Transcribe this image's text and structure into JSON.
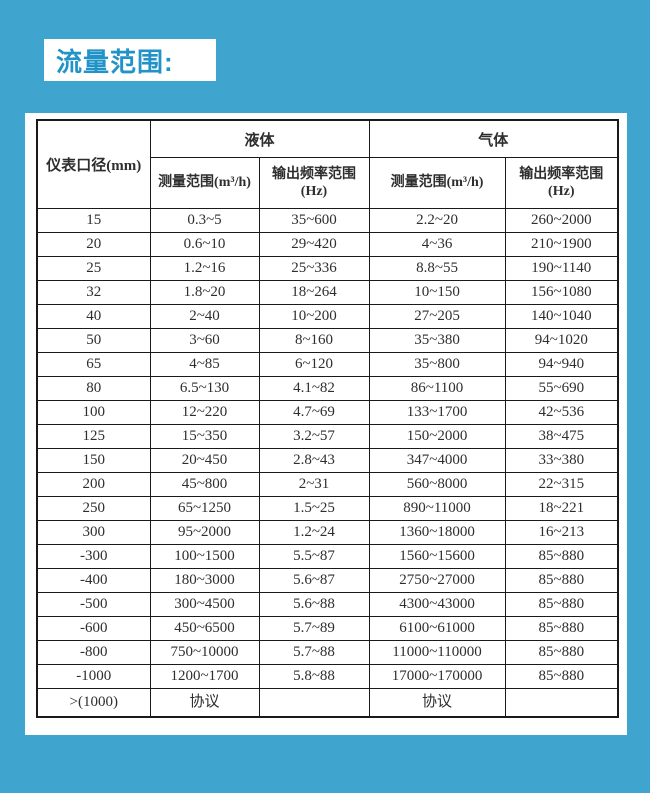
{
  "page": {
    "background_color": "#3FA4CE",
    "title": "流量范围:",
    "title_color": "#2193C9",
    "card_color": "#ffffff",
    "border_color": "#1a1a1a"
  },
  "table": {
    "corner_header": "仪表口径(mm)",
    "groups": [
      {
        "label": "液体"
      },
      {
        "label": "气体"
      }
    ],
    "sub_headers": [
      "测量范围(m³/h)",
      "输出频率范围\n(Hz)",
      "测量范围(m³/h)",
      "输出频率范围\n(Hz)"
    ],
    "rows": [
      [
        "15",
        "0.3~5",
        "35~600",
        "2.2~20",
        "260~2000"
      ],
      [
        "20",
        "0.6~10",
        "29~420",
        "4~36",
        "210~1900"
      ],
      [
        "25",
        "1.2~16",
        "25~336",
        "8.8~55",
        "190~1140"
      ],
      [
        "32",
        "1.8~20",
        "18~264",
        "10~150",
        "156~1080"
      ],
      [
        "40",
        "2~40",
        "10~200",
        "27~205",
        "140~1040"
      ],
      [
        "50",
        "3~60",
        "8~160",
        "35~380",
        "94~1020"
      ],
      [
        "65",
        "4~85",
        "6~120",
        "35~800",
        "94~940"
      ],
      [
        "80",
        "6.5~130",
        "4.1~82",
        "86~1100",
        "55~690"
      ],
      [
        "100",
        "12~220",
        "4.7~69",
        "133~1700",
        "42~536"
      ],
      [
        "125",
        "15~350",
        "3.2~57",
        "150~2000",
        "38~475"
      ],
      [
        "150",
        "20~450",
        "2.8~43",
        "347~4000",
        "33~380"
      ],
      [
        "200",
        "45~800",
        "2~31",
        "560~8000",
        "22~315"
      ],
      [
        "250",
        "65~1250",
        "1.5~25",
        "890~11000",
        "18~221"
      ],
      [
        "300",
        "95~2000",
        "1.2~24",
        "1360~18000",
        "16~213"
      ],
      [
        "-300",
        "100~1500",
        "5.5~87",
        "1560~15600",
        "85~880"
      ],
      [
        "-400",
        "180~3000",
        "5.6~87",
        "2750~27000",
        "85~880"
      ],
      [
        "-500",
        "300~4500",
        "5.6~88",
        "4300~43000",
        "85~880"
      ],
      [
        "-600",
        "450~6500",
        "5.7~89",
        "6100~61000",
        "85~880"
      ],
      [
        "-800",
        "750~10000",
        "5.7~88",
        "11000~110000",
        "85~880"
      ],
      [
        "-1000",
        "1200~1700",
        "5.8~88",
        "17000~170000",
        "85~880"
      ],
      [
        ">(1000)",
        "协议",
        "",
        "协议",
        ""
      ]
    ]
  }
}
